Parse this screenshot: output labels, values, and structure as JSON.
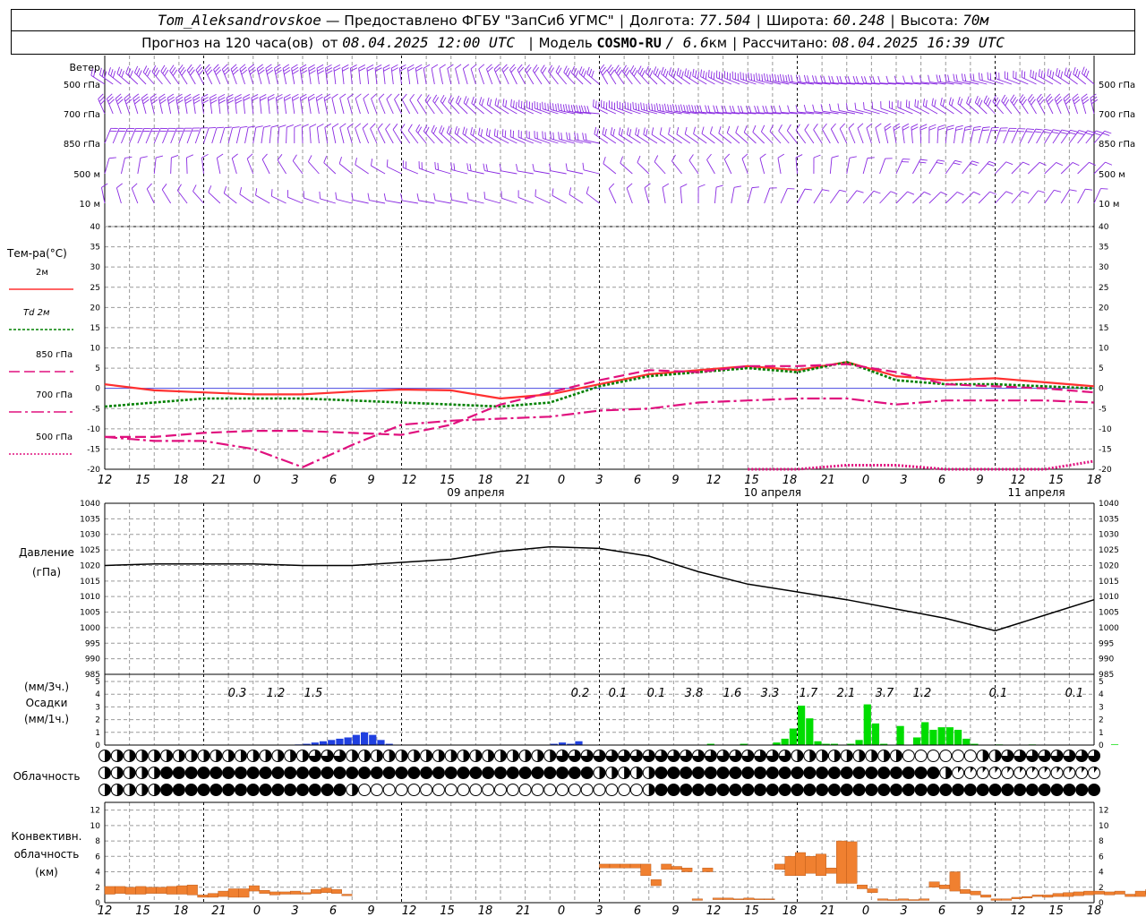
{
  "header": {
    "station": "Tom_Aleksandrovskoe",
    "dash": "—",
    "provider": "Предоставлено ФГБУ \"ЗапСиб УГМС\"",
    "lon_label": "Долгота:",
    "lon_value": "77.504",
    "lat_label": "Широта:",
    "lat_value": "60.248",
    "alt_label": "Высота:",
    "alt_value": "70м",
    "forecast_label": "Прогноз на 120 часа(ов)  от",
    "forecast_start": "08.04.2025 12:00 UTC",
    "model_label": "Модель",
    "model_name": "COSMO-RU",
    "model_res": "/ 6.6",
    "model_res_unit": "км",
    "calc_label": "Рассчитано:",
    "calc_time": "08.04.2025 16:39 UTC"
  },
  "colors": {
    "t2m": "#ff3030",
    "td2m": "#008000",
    "t850": "#e0107e",
    "t700": "#e0107e",
    "t500": "#e0107e",
    "wind": "#8a2be2",
    "precip_low": "#2040e0",
    "precip_high": "#00dd00",
    "convective": "#f08030",
    "pressure": "#000000",
    "grid": "#9a9a9a"
  },
  "chart_data": [
    {
      "type": "wind-barbs",
      "panel_label": "Ветер",
      "levels": [
        "500 гПа",
        "700 гПа",
        "850 гПа",
        "500 м",
        "10  м"
      ]
    },
    {
      "type": "line",
      "panel_label": "Тем-ра(°С)",
      "legend": [
        "2м",
        "Td  2м",
        "850 гПа",
        "700 гПа",
        "500 гПа"
      ],
      "ylim": [
        -20,
        40
      ],
      "yticks": [
        40,
        35,
        30,
        25,
        20,
        15,
        10,
        5,
        0,
        -5,
        -10,
        -15,
        -20
      ],
      "x_hours": [
        0,
        6,
        12,
        18,
        24,
        30,
        36,
        42,
        48,
        54,
        60,
        66,
        72,
        78,
        84,
        90,
        96,
        102,
        108,
        114,
        120
      ],
      "series": [
        {
          "name": "2м",
          "values": [
            1,
            -0.5,
            -1,
            -1.5,
            -1.5,
            -0.8,
            -0.3,
            -0.5,
            -2.5,
            -1.5,
            1,
            3.5,
            4.5,
            5.5,
            4.5,
            6.5,
            3,
            2,
            2.5,
            1.5,
            0.5
          ]
        },
        {
          "name": "Td  2м",
          "values": [
            -4.5,
            -3.5,
            -2.5,
            -2.5,
            -2.5,
            -3,
            -3.5,
            -4,
            -4.5,
            -3.5,
            0.5,
            3,
            4,
            5,
            4,
            6.5,
            2,
            1,
            1,
            0.5,
            0
          ]
        },
        {
          "name": "850 гПа",
          "values": [
            -12,
            -12,
            -11,
            -10.5,
            -10.5,
            -11,
            -11.5,
            -9,
            -4,
            -1,
            2,
            4.5,
            4,
            5.5,
            5.5,
            6,
            4,
            1,
            0.5,
            0,
            -1
          ]
        },
        {
          "name": "700 гПа",
          "values": [
            -12,
            -13,
            -13,
            -15,
            -19.5,
            -14,
            -9,
            -8,
            -7.5,
            -7,
            -5.5,
            -5,
            -3.5,
            -3,
            -2.5,
            -2.5,
            -4,
            -3,
            -3,
            -3,
            -3.5
          ]
        },
        {
          "name": "500 гПа",
          "values": [
            null,
            null,
            null,
            null,
            null,
            null,
            null,
            null,
            null,
            null,
            null,
            null,
            null,
            -20,
            -20,
            -19,
            -19,
            -20,
            -20,
            -20,
            -18
          ]
        }
      ],
      "x_tick_labels": [
        "12",
        "15",
        "18",
        "21",
        "0",
        "3",
        "6",
        "9",
        "12",
        "15",
        "18",
        "21",
        "0",
        "3",
        "6",
        "9",
        "12",
        "15",
        "18",
        "21",
        "0",
        "3",
        "6",
        "9",
        "12",
        "15",
        "18"
      ],
      "date_labels": [
        "09 апреля",
        "10 апреля",
        "11 апреля"
      ]
    },
    {
      "type": "line",
      "panel_label_1": "Давление",
      "panel_label_2": "(гПа)",
      "ylim": [
        985,
        1040
      ],
      "yticks": [
        1040,
        1035,
        1030,
        1025,
        1020,
        1015,
        1010,
        1005,
        1000,
        995,
        990,
        985
      ],
      "x_hours": [
        0,
        6,
        12,
        18,
        24,
        30,
        36,
        42,
        48,
        54,
        60,
        66,
        72,
        78,
        84,
        90,
        96,
        102,
        108,
        114,
        120
      ],
      "series": [
        {
          "name": "pressure",
          "values": [
            1020,
            1020.5,
            1020.5,
            1020.5,
            1020,
            1020,
            1021,
            1022,
            1024.5,
            1026,
            1025.5,
            1023,
            1018,
            1014,
            1011.5,
            1009,
            1006,
            1003,
            999,
            1004,
            1009
          ]
        }
      ]
    },
    {
      "type": "bar",
      "panel_label_1": "(мм/3ч.)",
      "panel_label_2": "Осадки",
      "panel_label_3": "(мм/1ч.)",
      "ylim": [
        0,
        5
      ],
      "yticks": [
        5,
        4,
        3,
        2,
        1,
        0
      ],
      "totals_3h": [
        "0.3",
        "1.2",
        "1.5",
        "0.2",
        "0.1",
        "0.1",
        "3.8",
        "1.6",
        "3.3",
        "1.7",
        "2.1",
        "3.7",
        "1.2",
        "0.1",
        "0.1"
      ],
      "hourly_mm": [
        0,
        0,
        0,
        0,
        0,
        0,
        0,
        0,
        0,
        0,
        0,
        0,
        0,
        0,
        0,
        0,
        0,
        0,
        0,
        0,
        0,
        0,
        0,
        0.05,
        0.1,
        0.2,
        0.3,
        0.4,
        0.5,
        0.6,
        0.8,
        1.0,
        0.8,
        0.4,
        0.1,
        0,
        0,
        0,
        0,
        0,
        0,
        0,
        0,
        0,
        0,
        0,
        0,
        0,
        0,
        0,
        0,
        0,
        0,
        0,
        0.1,
        0.2,
        0.1,
        0.3,
        0,
        0,
        0,
        0,
        0,
        0,
        0,
        0,
        0,
        0,
        0,
        0,
        0,
        0,
        0,
        0.1,
        0,
        0,
        0,
        0.1,
        0,
        0,
        0,
        0.2,
        0.5,
        1.3,
        3.1,
        2.1,
        0.3,
        0.1,
        0.1,
        0,
        0.1,
        0.4,
        3.2,
        1.7,
        0.1,
        0,
        1.5,
        0,
        0.6,
        1.8,
        1.2,
        1.4,
        1.4,
        1.2,
        0.5,
        0.1,
        0,
        0,
        0.05,
        0,
        0,
        0,
        0.05,
        0,
        0,
        0,
        0,
        0,
        0,
        0,
        0,
        0,
        0.05
      ]
    },
    {
      "type": "cloud-cover",
      "panel_label": "Облачность"
    },
    {
      "type": "bar",
      "panel_label_1": "Конвективн.",
      "panel_label_2": "облачность",
      "panel_label_3": "(км)",
      "ylim": [
        0,
        13
      ],
      "yticks": [
        12,
        10,
        8,
        6,
        4,
        2,
        0
      ],
      "blocks_km": [
        [
          1.1,
          2.1
        ],
        [
          1.2,
          2.1
        ],
        [
          1.1,
          2.0
        ],
        [
          1.1,
          2.1
        ],
        [
          1.2,
          2.0
        ],
        [
          1.2,
          2.0
        ],
        [
          1.1,
          2.1
        ],
        [
          1.1,
          2.2
        ],
        [
          1.0,
          2.3
        ],
        [
          0.7,
          1.0
        ],
        [
          0.7,
          1.2
        ],
        [
          0.8,
          1.5
        ],
        [
          0.7,
          1.8
        ],
        [
          0.7,
          1.8
        ],
        [
          1.5,
          2.2
        ],
        [
          1.2,
          1.6
        ],
        [
          1.0,
          1.4
        ],
        [
          1.1,
          1.4
        ],
        [
          1.1,
          1.5
        ],
        [
          1.1,
          1.3
        ],
        [
          1.2,
          1.7
        ],
        [
          1.3,
          1.9
        ],
        [
          1.2,
          1.7
        ],
        [
          0.9,
          1.1
        ],
        null,
        null,
        null,
        null,
        null,
        null,
        null,
        null,
        null,
        null,
        null,
        null,
        null,
        null,
        null,
        null,
        null,
        null,
        null,
        null,
        null,
        null,
        null,
        null,
        [
          4.5,
          5.0
        ],
        [
          4.5,
          5.0
        ],
        [
          4.5,
          5.0
        ],
        [
          4.5,
          5.0
        ],
        [
          3.5,
          5.0
        ],
        [
          2.2,
          3.0
        ],
        [
          4.3,
          5.0
        ],
        [
          4.3,
          4.7
        ],
        [
          4.0,
          4.5
        ],
        [
          0.3,
          0.5
        ],
        [
          4.0,
          4.5
        ],
        [
          0.4,
          0.6
        ],
        [
          0.4,
          0.6
        ],
        [
          0.4,
          0.5
        ],
        [
          0.4,
          0.6
        ],
        [
          0.4,
          0.5
        ],
        [
          0.4,
          0.5
        ],
        [
          4.3,
          5.0
        ],
        [
          3.5,
          6.0
        ],
        [
          3.5,
          6.5
        ],
        [
          3.8,
          6.0
        ],
        [
          3.5,
          6.3
        ],
        [
          3.8,
          4.5
        ],
        [
          2.5,
          8.0
        ],
        [
          2.5,
          7.9
        ],
        [
          1.8,
          2.3
        ],
        [
          1.3,
          1.8
        ],
        [
          0.3,
          0.5
        ],
        [
          0.3,
          0.4
        ],
        [
          0.3,
          0.5
        ],
        [
          0.3,
          0.4
        ],
        [
          0.3,
          0.5
        ],
        [
          2.0,
          2.7
        ],
        [
          1.8,
          2.3
        ],
        [
          1.5,
          4.0
        ],
        [
          1.2,
          1.7
        ],
        [
          1.0,
          1.5
        ],
        [
          0.7,
          1.0
        ],
        [
          0.3,
          0.5
        ],
        [
          0.3,
          0.5
        ],
        [
          0.5,
          0.7
        ],
        [
          0.6,
          0.8
        ],
        [
          0.8,
          1.0
        ],
        [
          0.7,
          1.0
        ],
        [
          0.8,
          1.2
        ],
        [
          0.8,
          1.3
        ],
        [
          0.9,
          1.4
        ],
        [
          1.0,
          1.5
        ],
        [
          1.1,
          1.5
        ],
        [
          1.0,
          1.4
        ],
        [
          1.1,
          1.5
        ],
        [
          0.8,
          1.1
        ],
        [
          0.8,
          1.5
        ],
        [
          1.1,
          1.7
        ],
        [
          1.1,
          1.7
        ],
        [
          1.0,
          1.6
        ],
        [
          1.0,
          1.6
        ],
        [
          0.9,
          1.4
        ],
        [
          0.8,
          1.4
        ],
        [
          0.9,
          1.5
        ],
        [
          1.0,
          1.6
        ],
        [
          1.1,
          1.7
        ],
        [
          1.0,
          1.5
        ],
        [
          0.9,
          1.4
        ],
        [
          0.8,
          1.2
        ],
        [
          0.9,
          1.1
        ],
        [
          0.8,
          1.1
        ],
        [
          0.5,
          0.9
        ],
        [
          0.4,
          0.8
        ],
        [
          0.5,
          0.9
        ],
        [
          0.5,
          1.0
        ],
        [
          0.6,
          1.0
        ]
      ]
    }
  ]
}
